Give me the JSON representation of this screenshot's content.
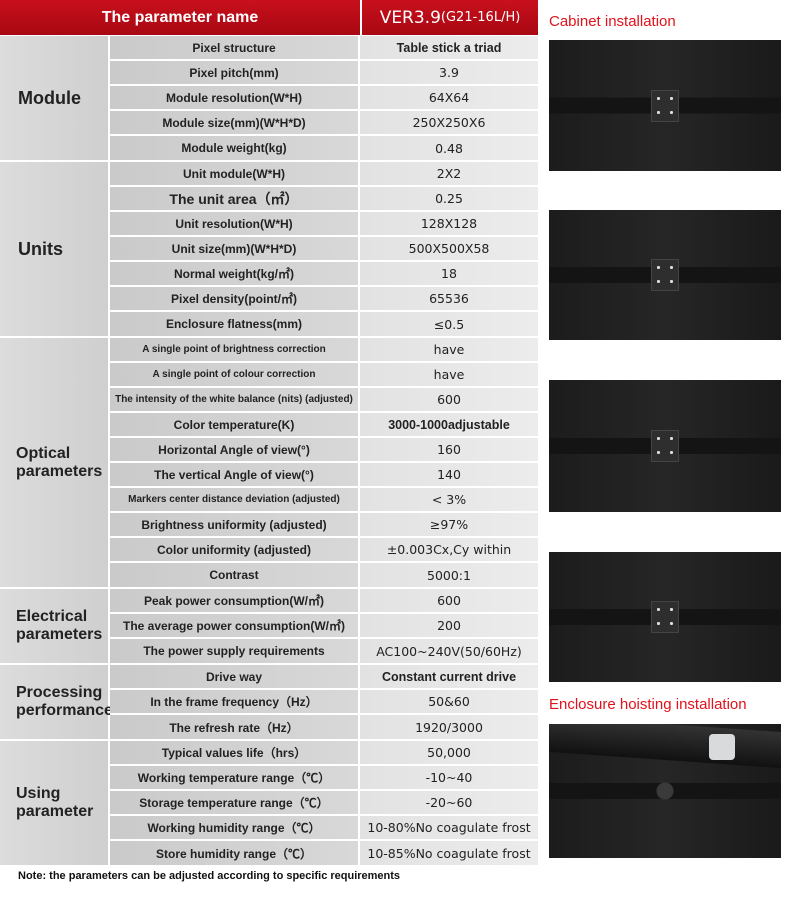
{
  "header": {
    "param_label": "The parameter name",
    "model_main": "VER3.9",
    "model_sub": "(G21-16L/H)"
  },
  "groups": [
    {
      "label": "Module",
      "rows": [
        {
          "param": "Pixel structure",
          "value": "Table stick a triad",
          "bold": true
        },
        {
          "param": "Pixel pitch(mm)",
          "value": "3.9"
        },
        {
          "param": "Module resolution(W*H)",
          "value": "64X64"
        },
        {
          "param": "Module size(mm)(W*H*D)",
          "value": "250X250X6"
        },
        {
          "param": "Module weight(kg)",
          "value": "0.48"
        }
      ]
    },
    {
      "label": "Units",
      "rows": [
        {
          "param": "Unit module(W*H)",
          "value": "2X2"
        },
        {
          "param": "The unit area（㎡）",
          "value": "0.25",
          "large": true
        },
        {
          "param": "Unit resolution(W*H)",
          "value": "128X128"
        },
        {
          "param": "Unit size(mm)(W*H*D)",
          "value": "500X500X58"
        },
        {
          "param": "Normal weight(kg/㎡)",
          "value": "18"
        },
        {
          "param": "Pixel density(point/㎡)",
          "value": "65536"
        },
        {
          "param": "Enclosure flatness(mm)",
          "value": "≤0.5"
        }
      ]
    },
    {
      "label": "Optical parameters",
      "rows": [
        {
          "param": "A single point of brightness correction",
          "value": "have",
          "small": true
        },
        {
          "param": "A single point of colour correction",
          "value": "have",
          "small": true
        },
        {
          "param": "The intensity of the white balance (nits) (adjusted)",
          "value": "600",
          "small": true
        },
        {
          "param": "Color temperature(K)",
          "value": "3000-1000adjustable",
          "bold": true
        },
        {
          "param": "Horizontal Angle of view(°)",
          "value": "160"
        },
        {
          "param": "The vertical Angle of view(°)",
          "value": "140"
        },
        {
          "param": "Markers center distance deviation (adjusted)",
          "value": "< 3%",
          "small": true
        },
        {
          "param": "Brightness uniformity (adjusted)",
          "value": "≥97%"
        },
        {
          "param": "Color uniformity (adjusted)",
          "value": "±0.003Cx,Cy within"
        },
        {
          "param": "Contrast",
          "value": "5000:1"
        }
      ]
    },
    {
      "label": "Electrical parameters",
      "rows": [
        {
          "param": "Peak power consumption(W/㎡)",
          "value": "600"
        },
        {
          "param": "The average power consumption(W/㎡)",
          "value": "200"
        },
        {
          "param": "The power supply requirements",
          "value": "AC100~240V(50/60Hz)"
        }
      ]
    },
    {
      "label": "Processing performance",
      "rows": [
        {
          "param": "Drive way",
          "value": "Constant current drive",
          "bold": true
        },
        {
          "param": "In the frame frequency（Hz）",
          "value": "50&60"
        },
        {
          "param": "The refresh rate（Hz）",
          "value": "1920/3000"
        }
      ]
    },
    {
      "label": "Using parameter",
      "rows": [
        {
          "param": "Typical values life（hrs）",
          "value": "50,000"
        },
        {
          "param": "Working temperature range（℃）",
          "value": "-10~40"
        },
        {
          "param": "Storage temperature range（℃）",
          "value": "-20~60"
        },
        {
          "param": "Working humidity range（℃）",
          "value": "10-80%No coagulate frost"
        },
        {
          "param": "Store humidity range（℃）",
          "value": "10-85%No coagulate frost"
        }
      ]
    }
  ],
  "captions": {
    "cabinet": "Cabinet installation",
    "hoisting": "Enclosure hoisting installation"
  },
  "note": "Note: the parameters can be adjusted according to specific requirements",
  "colors": {
    "header_red": "#c8101d",
    "caption_red": "#e0121b"
  }
}
